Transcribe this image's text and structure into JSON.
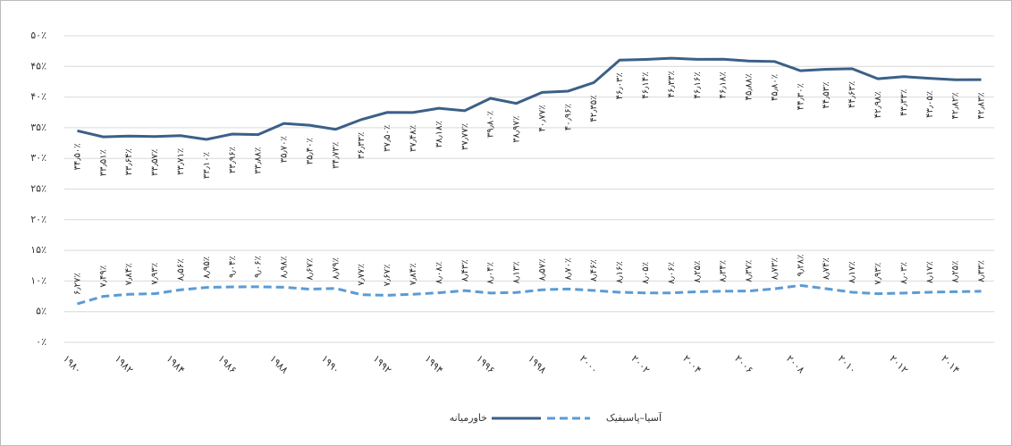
{
  "chart_data": {
    "type": "line",
    "categories": [
      "۱۹۸۰",
      null,
      "۱۹۸۲",
      null,
      "۱۹۸۴",
      null,
      "۱۹۸۶",
      null,
      "۱۹۸۸",
      null,
      "۱۹۹۰",
      null,
      "۱۹۹۲",
      null,
      "۱۹۹۴",
      null,
      "۱۹۹۶",
      null,
      "۱۹۹۸",
      null,
      "۲۰۰۰",
      null,
      "۲۰۰۲",
      null,
      "۲۰۰۴",
      null,
      "۲۰۰۶",
      null,
      "۲۰۰۸",
      null,
      "۲۰۱۰",
      null,
      "۲۰۱۲",
      null,
      "۲۰۱۴",
      null
    ],
    "series": [
      {
        "name": "خاورمیانه",
        "color": "#3b6088",
        "line_style": "solid",
        "values": [
          34.5,
          33.51,
          33.64,
          33.57,
          33.71,
          33.1,
          33.96,
          33.88,
          35.7,
          35.4,
          34.73,
          36.33,
          37.5,
          37.48,
          38.18,
          37.77,
          39.8,
          38.97,
          40.77,
          40.96,
          42.35,
          46.03,
          46.14,
          46.33,
          46.16,
          46.18,
          45.88,
          45.8,
          44.3,
          44.53,
          44.63,
          42.98,
          43.33,
          43.05,
          42.82,
          42.83
        ],
        "value_labels": [
          "۳۴٫۵۰٪",
          "۳۳٫۵۱٪",
          "۳۳٫۶۴٪",
          "۳۳٫۵۷٪",
          "۳۳٫۷۱٪",
          "۳۳٫۱۰٪",
          "۳۳٫۹۶٪",
          "۳۳٫۸۸٪",
          "۳۵٫۷۰٪",
          "۳۵٫۴۰٪",
          "۳۴٫۷۳٪",
          "۳۶٫۳۳٪",
          "۳۷٫۵۰٪",
          "۳۷٫۴۸٪",
          "۳۸٫۱۸٪",
          "۳۷٫۷۷٪",
          "۳۹٫۸۰٪",
          "۳۸٫۹۷٪",
          "۴۰٫۷۷٪",
          "۴۰٫۹۶٪",
          "۴۲٫۳۵٪",
          "۴۶٫۰۳٪",
          "۴۶٫۱۴٪",
          "۴۶٫۳۳٪",
          "۴۶٫۱۶٪",
          "۴۶٫۱۸٪",
          "۴۵٫۸۸٪",
          "۴۵٫۸۰٪",
          "۴۴٫۳۰٪",
          "۴۴٫۵۳٪",
          "۴۴٫۶۳٪",
          "۴۲٫۹۸٪",
          "۴۳٫۳۳٪",
          "۴۳٫۰۵٪",
          "۴۲٫۸۲٪",
          "۴۲٫۸۳٪"
        ]
      },
      {
        "name": "آسیا–پاسیفیک",
        "color": "#5b9bd5",
        "line_style": "dashed",
        "values": [
          6.27,
          7.49,
          7.84,
          7.93,
          8.56,
          8.95,
          9.04,
          9.06,
          8.98,
          8.67,
          8.79,
          7.77,
          7.67,
          7.84,
          8.08,
          8.43,
          8.04,
          8.13,
          8.57,
          8.7,
          8.46,
          8.16,
          8.05,
          8.06,
          8.25,
          8.34,
          8.37,
          8.73,
          9.28,
          8.74,
          8.17,
          7.93,
          8.03,
          8.17,
          8.25,
          8.33
        ],
        "value_labels": [
          "۶٫۲۷٪",
          "۷٫۴۹٪",
          "۷٫۸۴٪",
          "۷٫۹۳٪",
          "۸٫۵۶٪",
          "۸٫۹۵٪",
          "۹٫۰۴٪",
          "۹٫۰۶٪",
          "۸٫۹۸٪",
          "۸٫۶۷٪",
          "۸٫۷۹٪",
          "۷٫۷۷٪",
          "۷٫۶۷٪",
          "۷٫۸۴٪",
          "۸٫۰۸٪",
          "۸٫۴۳٪",
          "۸٫۰۴٪",
          "۸٫۱۳٪",
          "۸٫۵۷٪",
          "۸٫۷۰٪",
          "۸٫۴۶٪",
          "۸٫۱۶٪",
          "۸٫۰۵٪",
          "۸٫۰۶٪",
          "۸٫۲۵٪",
          "۸٫۳۴٪",
          "۸٫۳۷٪",
          "۸٫۷۳٪",
          "۹٫۲۸٪",
          "۸٫۷۴٪",
          "۸٫۱۷٪",
          "۷٫۹۳٪",
          "۸٫۰۳٪",
          "۸٫۱۷٪",
          "۸٫۲۵٪",
          "۸٫۳۳٪"
        ]
      }
    ],
    "ylim": [
      0,
      50
    ],
    "yticks": [
      {
        "value": 0,
        "label": "۰٪"
      },
      {
        "value": 5,
        "label": "۵٪"
      },
      {
        "value": 10,
        "label": "۱۰٪"
      },
      {
        "value": 15,
        "label": "۱۵٪"
      },
      {
        "value": 20,
        "label": "۲۰٪"
      },
      {
        "value": 25,
        "label": "۲۵٪"
      },
      {
        "value": 30,
        "label": "۳۰٪"
      },
      {
        "value": 35,
        "label": "۳۵٪"
      },
      {
        "value": 40,
        "label": "۴۰٪"
      },
      {
        "value": 45,
        "label": "۴۵٪"
      },
      {
        "value": 50,
        "label": "۵۰٪"
      }
    ],
    "grid": true,
    "legend": "bottom"
  }
}
